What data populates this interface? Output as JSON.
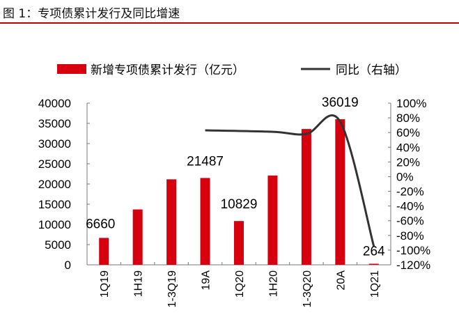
{
  "title": "图 1：专项债累计发行及同比增速",
  "chart_data": {
    "type": "bar+line",
    "categories": [
      "1Q19",
      "1H19",
      "1-3Q19",
      "19A",
      "1Q20",
      "1H20",
      "1-3Q20",
      "20A",
      "1Q21"
    ],
    "series": [
      {
        "name": "新增专项债累计发行（亿元）",
        "type": "bar",
        "axis": "left",
        "color": "#d7000f",
        "values": [
          6660,
          13700,
          21150,
          21487,
          10829,
          22100,
          33600,
          36019,
          264
        ]
      },
      {
        "name": "同比（右轴）",
        "type": "line",
        "axis": "right",
        "color": "#333333",
        "values": [
          null,
          null,
          null,
          63,
          null,
          61,
          58,
          75,
          -95
        ]
      }
    ],
    "data_labels": [
      {
        "index": 0,
        "text": "6660"
      },
      {
        "index": 3,
        "text": "21487"
      },
      {
        "index": 4,
        "text": "10829"
      },
      {
        "index": 7,
        "text": "36019"
      },
      {
        "index": 8,
        "text": "264"
      }
    ],
    "ylim": [
      0,
      40000
    ],
    "yticks": [
      "0",
      "5000",
      "10000",
      "15000",
      "20000",
      "25000",
      "30000",
      "35000",
      "40000"
    ],
    "y2lim": [
      -120,
      100
    ],
    "y2ticks": [
      "-120%",
      "-100%",
      "-80%",
      "-60%",
      "-40%",
      "-20%",
      "0%",
      "20%",
      "40%",
      "60%",
      "80%",
      "100%"
    ],
    "legend": "top"
  }
}
